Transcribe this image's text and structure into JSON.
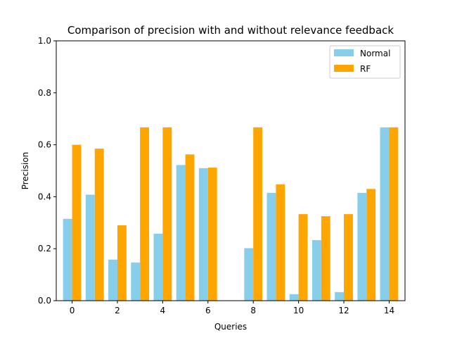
{
  "chart_data": {
    "type": "bar",
    "title": "Comparison of precision with and without relevance feedback",
    "xlabel": "Queries",
    "ylabel": "Precision",
    "x": [
      0,
      1,
      2,
      3,
      4,
      5,
      6,
      7,
      8,
      9,
      10,
      11,
      12,
      13,
      14
    ],
    "xticks": [
      0,
      2,
      4,
      6,
      8,
      10,
      12,
      14
    ],
    "yticks": [
      0.0,
      0.2,
      0.4,
      0.6,
      0.8,
      1.0
    ],
    "ytick_labels": [
      "0.0",
      "0.2",
      "0.4",
      "0.6",
      "0.8",
      "1.0"
    ],
    "ylim": [
      0,
      1
    ],
    "grid": false,
    "legend": "top-right",
    "series": [
      {
        "name": "Normal",
        "color": "#87ceeb",
        "values": [
          0.315,
          0.408,
          0.158,
          0.147,
          0.258,
          0.522,
          0.51,
          0.0,
          0.202,
          0.415,
          0.025,
          0.233,
          0.033,
          0.415,
          0.667
        ]
      },
      {
        "name": "RF",
        "color": "#ffa500",
        "values": [
          0.6,
          0.585,
          0.29,
          0.667,
          0.667,
          0.563,
          0.512,
          0.0,
          0.667,
          0.448,
          0.333,
          0.325,
          0.333,
          0.43,
          0.667
        ]
      }
    ]
  }
}
